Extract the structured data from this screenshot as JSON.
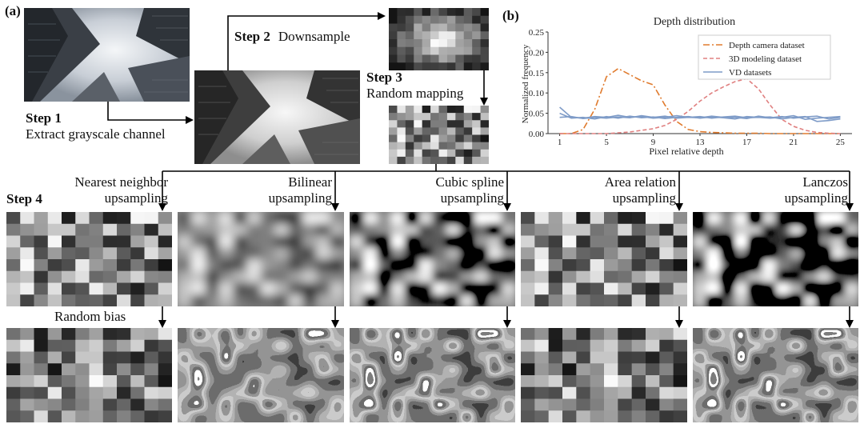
{
  "panel_a": {
    "label": "(a)",
    "step1": {
      "title": "Step 1",
      "desc": "Extract grayscale channel"
    },
    "step2": {
      "title": "Step 2",
      "desc": "Downsample"
    },
    "step3": {
      "title": "Step 3",
      "desc": "Random mapping"
    },
    "step4": {
      "title": "Step 4"
    },
    "random_bias_label": "Random bias",
    "methods": [
      {
        "line1": "Nearest neighbor",
        "line2": "upsampling"
      },
      {
        "line1": "Bilinear",
        "line2": "upsampling"
      },
      {
        "line1": "Cubic spline",
        "line2": "upsampling"
      },
      {
        "line1": "Area relation",
        "line2": "upsampling"
      },
      {
        "line1": "Lanczos",
        "line2": "upsampling"
      }
    ]
  },
  "panel_b": {
    "label": "(b)"
  },
  "chart_data": {
    "type": "line",
    "title": "Depth distribution",
    "xlabel": "Pixel relative depth",
    "ylabel": "Normalized frequency",
    "xlim": [
      0,
      26
    ],
    "ylim": [
      0,
      0.25
    ],
    "xticks": [
      "1",
      "5",
      "9",
      "13",
      "17",
      "21",
      "25"
    ],
    "yticks": [
      "0.00",
      "0.05",
      "0.10",
      "0.15",
      "0.20",
      "0.25"
    ],
    "series": [
      {
        "name": "Depth camera dataset",
        "color": "#e07b2e",
        "style": "dashdot",
        "x": [
          1,
          2,
          3,
          4,
          5,
          6,
          7,
          8,
          9,
          10,
          11,
          12,
          13,
          14,
          15,
          16,
          17,
          18,
          19,
          20,
          21,
          22,
          23,
          24,
          25
        ],
        "values": [
          0.0,
          0.0,
          0.01,
          0.06,
          0.14,
          0.16,
          0.145,
          0.13,
          0.12,
          0.07,
          0.03,
          0.01,
          0.005,
          0.003,
          0.002,
          0.001,
          0.001,
          0.001,
          0.0,
          0.0,
          0.0,
          0.0,
          0.0,
          0.0,
          0.0
        ]
      },
      {
        "name": "3D modeling dataset",
        "color": "#e08080",
        "style": "dashed",
        "x": [
          1,
          2,
          3,
          4,
          5,
          6,
          7,
          8,
          9,
          10,
          11,
          12,
          13,
          14,
          15,
          16,
          17,
          18,
          19,
          20,
          21,
          22,
          23,
          24,
          25
        ],
        "values": [
          0.0,
          0.0,
          0.0,
          0.0,
          0.0,
          0.002,
          0.004,
          0.008,
          0.012,
          0.02,
          0.035,
          0.055,
          0.08,
          0.1,
          0.115,
          0.128,
          0.135,
          0.11,
          0.07,
          0.035,
          0.018,
          0.008,
          0.003,
          0.001,
          0.0
        ]
      },
      {
        "name": "VD datasets",
        "color": "#7f9cc8",
        "style": "solid",
        "x": [
          1,
          2,
          3,
          4,
          5,
          6,
          7,
          8,
          9,
          10,
          11,
          12,
          13,
          14,
          15,
          16,
          17,
          18,
          19,
          20,
          21,
          22,
          23,
          24,
          25
        ],
        "values": [
          0.065,
          0.04,
          0.038,
          0.042,
          0.04,
          0.045,
          0.04,
          0.042,
          0.038,
          0.04,
          0.044,
          0.04,
          0.042,
          0.038,
          0.041,
          0.043,
          0.039,
          0.04,
          0.038,
          0.04,
          0.044,
          0.035,
          0.038,
          0.04,
          0.042
        ]
      },
      {
        "name": "",
        "color": "#7f9cc8",
        "style": "solid",
        "x": [
          1,
          2,
          3,
          4,
          5,
          6,
          7,
          8,
          9,
          10,
          11,
          12,
          13,
          14,
          15,
          16,
          17,
          18,
          19,
          20,
          21,
          22,
          23,
          24,
          25
        ],
        "values": [
          0.05,
          0.038,
          0.04,
          0.036,
          0.042,
          0.038,
          0.043,
          0.039,
          0.041,
          0.037,
          0.04,
          0.042,
          0.038,
          0.041,
          0.039,
          0.036,
          0.042,
          0.04,
          0.041,
          0.036,
          0.04,
          0.042,
          0.03,
          0.032,
          0.036
        ]
      },
      {
        "name": "",
        "color": "#7f9cc8",
        "style": "solid",
        "x": [
          1,
          2,
          3,
          4,
          5,
          6,
          7,
          8,
          9,
          10,
          11,
          12,
          13,
          14,
          15,
          16,
          17,
          18,
          19,
          20,
          21,
          22,
          23,
          24,
          25
        ],
        "values": [
          0.04,
          0.042,
          0.037,
          0.04,
          0.038,
          0.041,
          0.039,
          0.044,
          0.04,
          0.043,
          0.038,
          0.04,
          0.039,
          0.043,
          0.04,
          0.04,
          0.037,
          0.043,
          0.039,
          0.042,
          0.038,
          0.041,
          0.043,
          0.036,
          0.04
        ]
      }
    ]
  }
}
